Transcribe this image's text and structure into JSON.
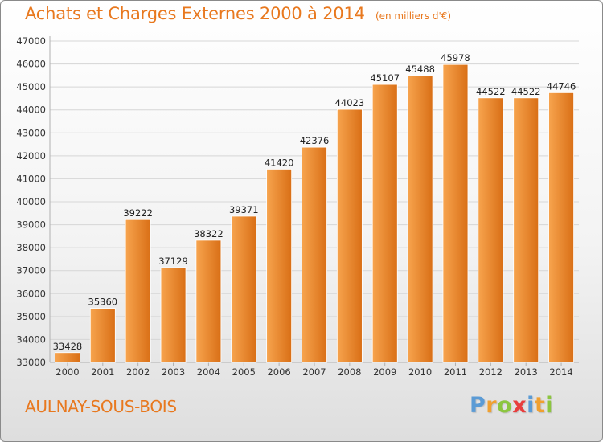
{
  "colors": {
    "accent": "#e8781e",
    "bar_light": "#f7a44e",
    "bar_dark": "#d96f16",
    "grid": "#d6d6d6",
    "axis_text": "#333333",
    "label_text": "#222222"
  },
  "header": {
    "title": "Achats et Charges Externes 2000 à 2014",
    "unit": "(en milliers d'€)"
  },
  "footer": {
    "city": "AULNAY-SOUS-BOIS",
    "brand_letters": [
      {
        "char": "P",
        "color": "#5b9bd5"
      },
      {
        "char": "r",
        "color": "#f0a030"
      },
      {
        "char": "o",
        "color": "#8cc63f"
      },
      {
        "char": "x",
        "color": "#e83e3e"
      },
      {
        "char": "i",
        "color": "#5b9bd5"
      },
      {
        "char": "t",
        "color": "#f0a030"
      },
      {
        "char": "i",
        "color": "#8cc63f"
      }
    ]
  },
  "chart_data": {
    "type": "bar",
    "categories": [
      "2000",
      "2001",
      "2002",
      "2003",
      "2004",
      "2005",
      "2006",
      "2007",
      "2008",
      "2009",
      "2010",
      "2011",
      "2012",
      "2013",
      "2014"
    ],
    "values": [
      33428,
      35360,
      39222,
      37129,
      38322,
      39371,
      41420,
      42376,
      44023,
      45107,
      45488,
      45978,
      44522,
      44522,
      44746
    ],
    "value_labels": [
      "33428",
      "35360",
      "39222",
      "37129",
      "38322",
      "39371",
      "41420",
      "42376",
      "44023",
      "45107",
      "45488",
      "45978",
      "44522",
      "44522",
      "44746"
    ],
    "yticks": [
      "33000",
      "34000",
      "35000",
      "36000",
      "37000",
      "38000",
      "39000",
      "40000",
      "41000",
      "42000",
      "43000",
      "44000",
      "45000",
      "46000",
      "47000"
    ],
    "ylim": [
      33000,
      47000
    ],
    "grid": true
  }
}
